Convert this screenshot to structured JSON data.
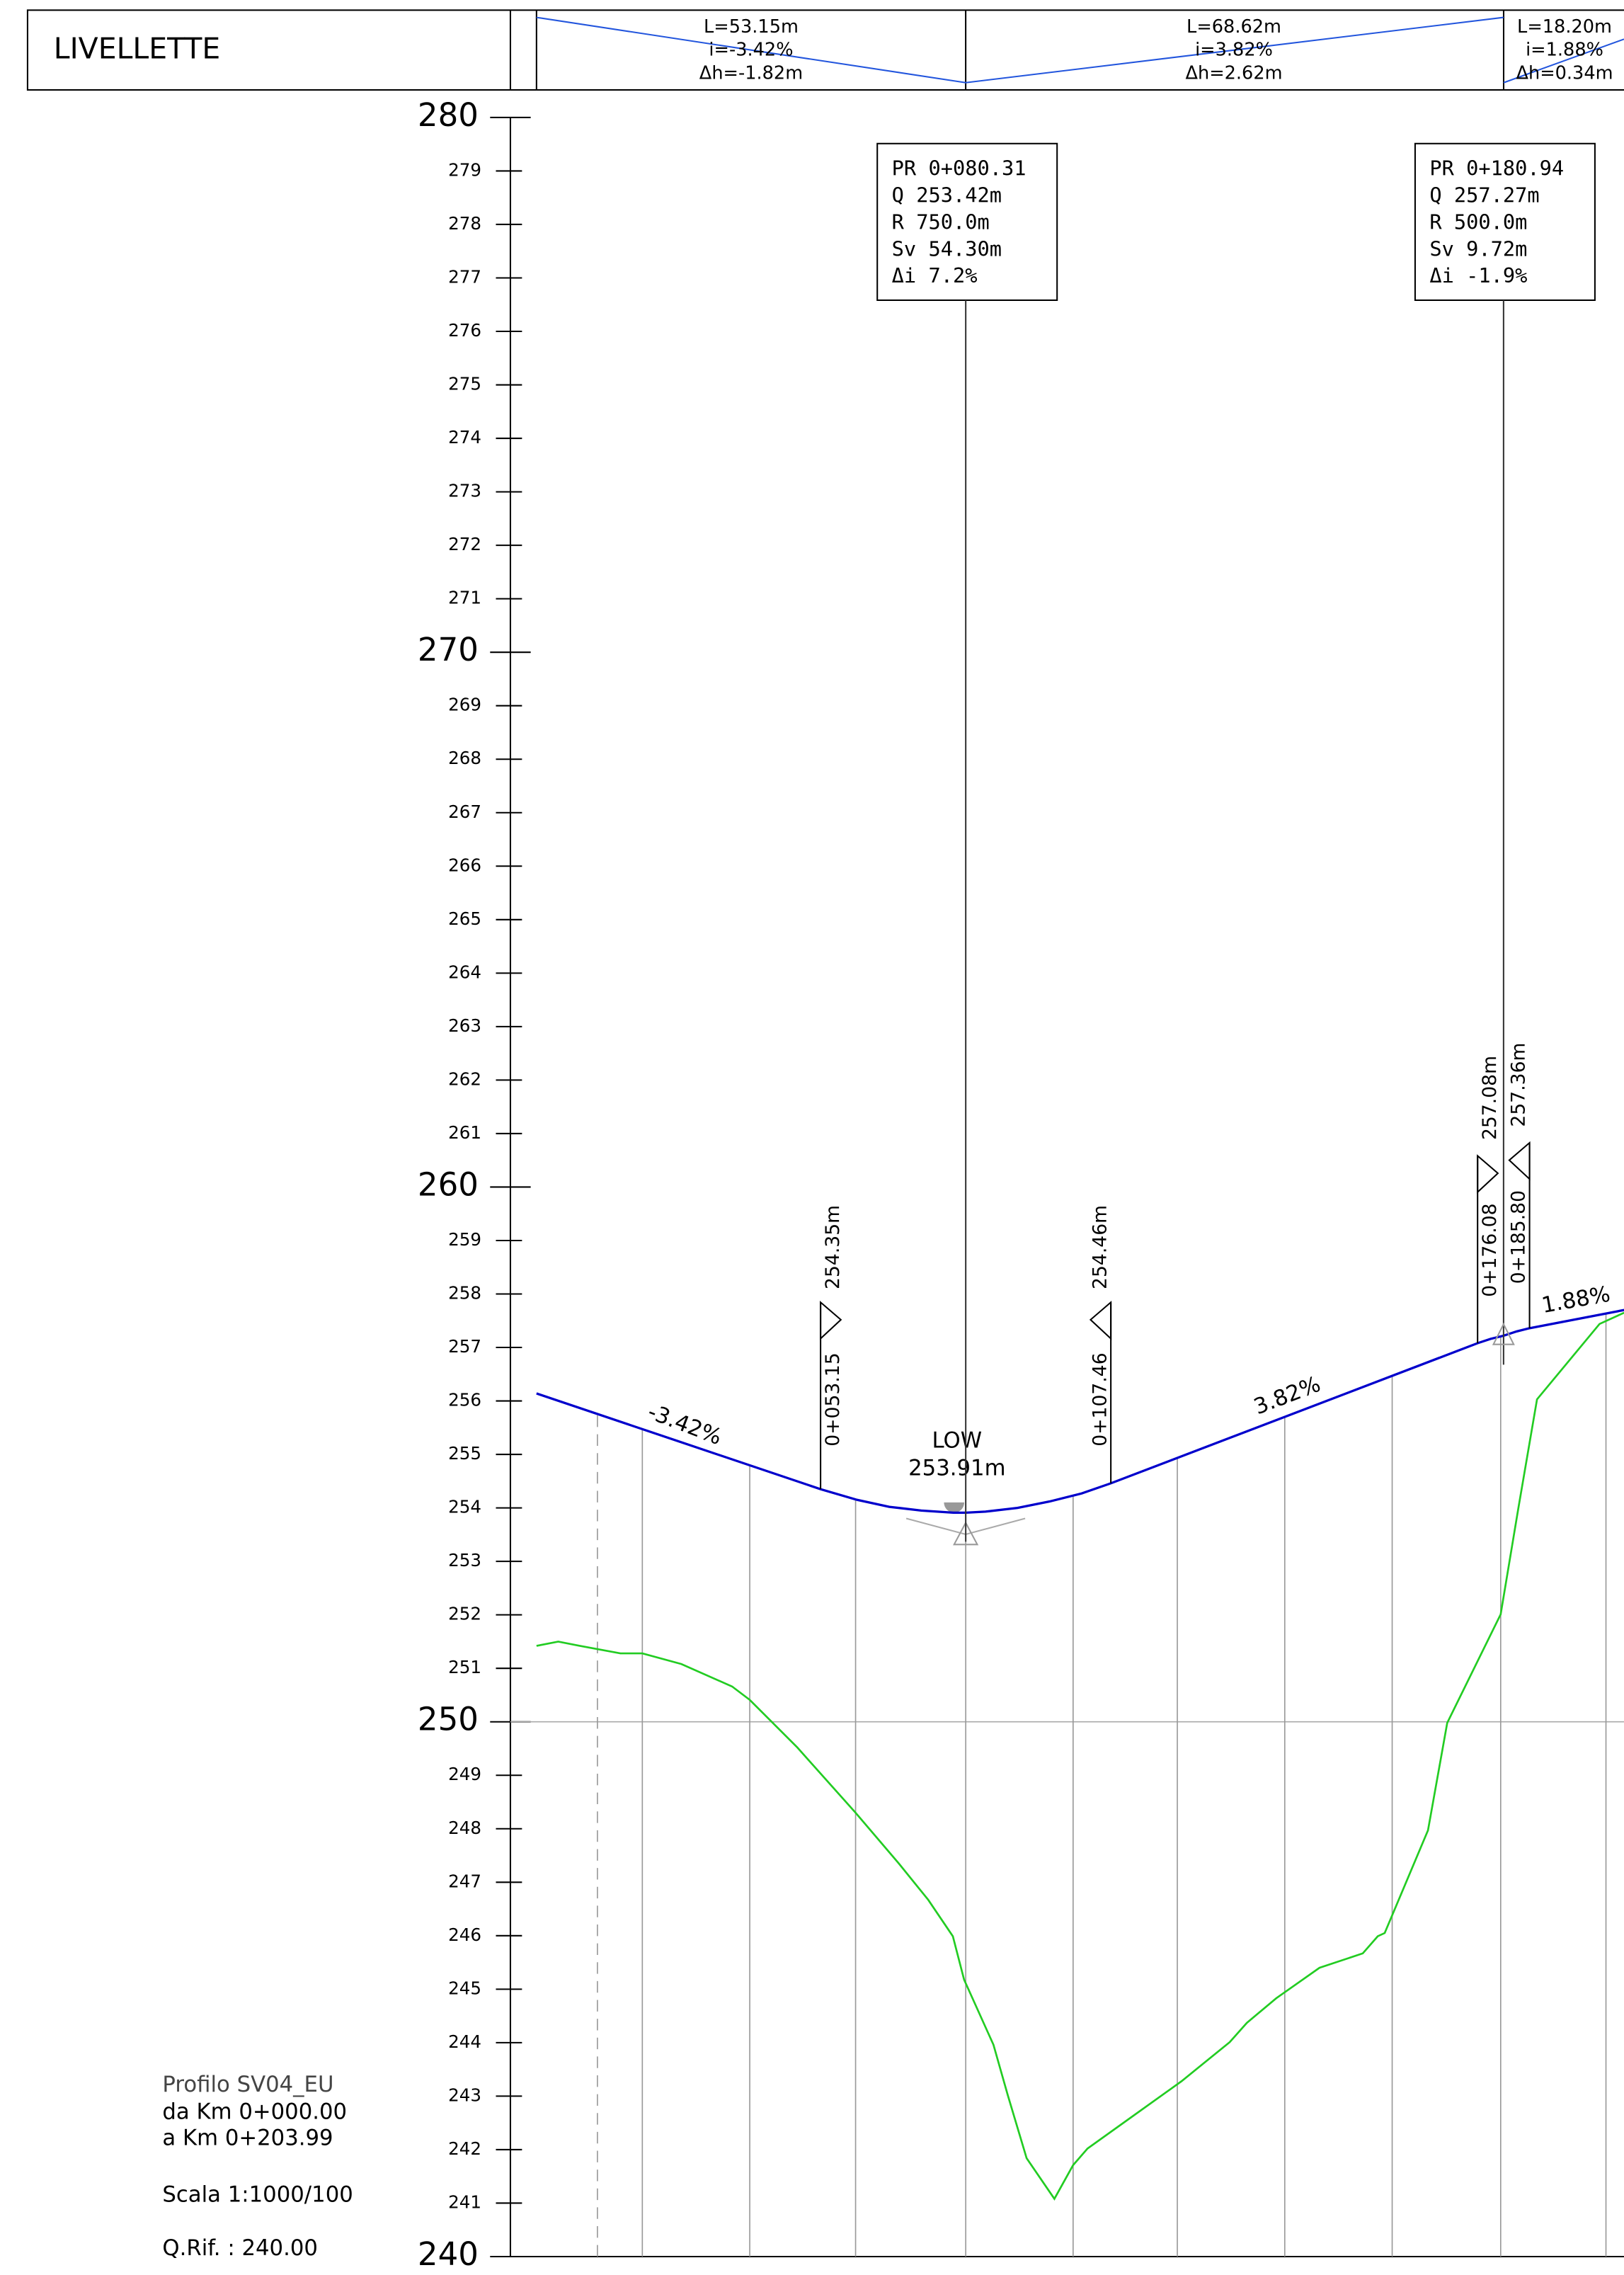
{
  "header": {
    "title": "LIVELLETTE",
    "segments": [
      {
        "length": "L=53.15m",
        "slope": "i=-3.42%",
        "dh": "Δh=-1.82m"
      },
      {
        "length": "L=68.62m",
        "slope": "i=3.82%",
        "dh": "Δh=2.62m"
      },
      {
        "length": "L=18.20m",
        "slope": "i=1.88%",
        "dh": "Δh=0.34m"
      }
    ]
  },
  "chart_data": {
    "type": "profile",
    "ylim": [
      240,
      280
    ],
    "yticks": [
      240,
      241,
      242,
      243,
      244,
      245,
      246,
      247,
      248,
      249,
      250,
      251,
      252,
      253,
      254,
      255,
      256,
      257,
      258,
      259,
      260,
      261,
      262,
      263,
      264,
      265,
      266,
      267,
      268,
      269,
      270,
      271,
      272,
      273,
      274,
      275,
      276,
      277,
      278,
      279,
      280
    ],
    "xlim": [
      0,
      203.5
    ],
    "reference_line": 250,
    "ground": {
      "color": "#22cc22",
      "x": [
        0,
        4.07,
        8.1,
        15.7,
        19.8,
        27.1,
        36.6,
        39.9,
        48.8,
        59.7,
        67.8,
        73.3,
        77.9,
        80.0,
        85.5,
        88.2,
        91.7,
        96.9,
        100.4,
        103.1,
        111.2,
        120.7,
        129.7,
        132.9,
        138.4,
        146.5,
        154.6,
        157.4,
        158.7,
        166.8,
        170.4,
        180.4,
        183.7,
        187.2,
        198.9,
        203.5
      ],
      "values": [
        251.42,
        251.5,
        251.42,
        251.28,
        251.28,
        251.08,
        250.66,
        250.41,
        249.52,
        248.3,
        247.35,
        246.67,
        245.99,
        245.18,
        243.96,
        243.01,
        241.84,
        241.08,
        241.71,
        242.02,
        242.6,
        243.28,
        244.01,
        244.37,
        244.83,
        245.4,
        245.67,
        245.99,
        246.05,
        247.97,
        249.98,
        252.01,
        253.99,
        256.03,
        257.44,
        257.65
      ]
    },
    "grade": {
      "color": "#0000cc",
      "x": [
        0,
        53.15,
        60,
        66,
        72,
        78,
        80.31,
        84,
        90,
        96,
        102,
        107.46,
        176.08,
        178.5,
        180.94,
        183.4,
        185.8,
        203.5
      ],
      "values": [
        256.14,
        254.35,
        254.15,
        254.02,
        253.95,
        253.91,
        253.91,
        253.93,
        254.0,
        254.12,
        254.27,
        254.46,
        257.08,
        257.16,
        257.22,
        257.3,
        257.36,
        257.7
      ]
    },
    "sections": [
      {
        "x": 11.4,
        "dashed": true
      },
      {
        "x": 19.8,
        "dashed": false
      },
      {
        "x": 39.9,
        "dashed": false
      },
      {
        "x": 59.7,
        "dashed": false
      },
      {
        "x": 80.31,
        "dashed": false
      },
      {
        "x": 100.4,
        "dashed": false
      },
      {
        "x": 119.9,
        "dashed": false
      },
      {
        "x": 140.0,
        "dashed": false
      },
      {
        "x": 160.1,
        "dashed": false
      },
      {
        "x": 180.4,
        "dashed": false
      },
      {
        "x": 200.1,
        "dashed": false
      }
    ],
    "vertices": [
      {
        "x": 80.31,
        "label": [
          "PR 0+080.31",
          "Q  253.42m",
          "R  750.0m",
          "Sv 54.30m",
          "Δi 7.2%"
        ]
      },
      {
        "x": 180.94,
        "label": [
          "PR 0+180.94",
          "Q  257.27m",
          "R  500.0m",
          "Sv 9.72m",
          "Δi -1.9%"
        ]
      }
    ],
    "markers": [
      {
        "x": 53.15,
        "y": 254.35,
        "station": "0+053.15",
        "elevation": "254.35m"
      },
      {
        "x": 107.46,
        "y": 254.46,
        "station": "0+107.46",
        "elevation": "254.46m"
      },
      {
        "x": 176.08,
        "y": 257.08,
        "station": "0+176.08",
        "elevation": "257.08m"
      },
      {
        "x": 185.8,
        "y": 257.36,
        "station": "0+185.80",
        "elevation": "257.36m"
      }
    ],
    "slope_labels": [
      "-3.42%",
      "3.82%",
      "1.88%"
    ],
    "low_point": {
      "label": "LOW",
      "elevation": "253.91m"
    }
  },
  "notes": [
    "Profilo  SV04_EU",
    "da  Km  0+000.00",
    "a  Km  0+203.99",
    "Scala  1:1000/100",
    "Q.Rif.  :  240.00"
  ]
}
